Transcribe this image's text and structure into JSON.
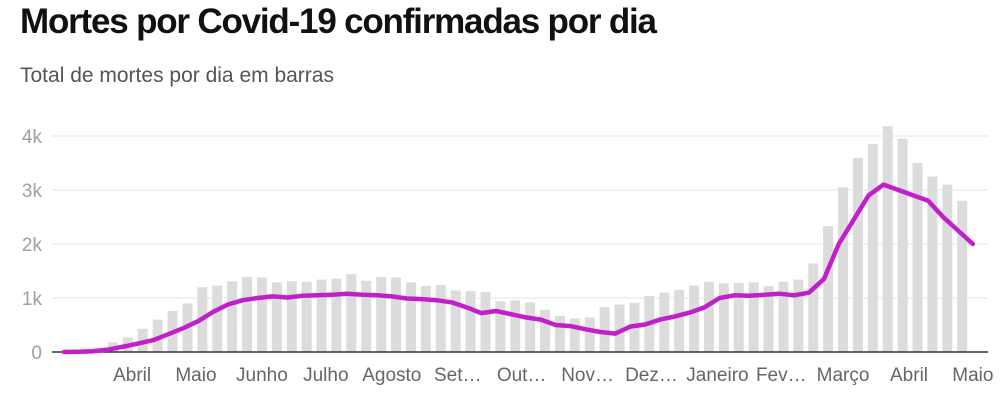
{
  "chart_data": {
    "type": "bar",
    "title": "Mortes por Covid-19 confirmadas por dia",
    "subtitle": "Total de mortes por dia em barras",
    "y_ticks": [
      0,
      1000,
      2000,
      3000,
      4000
    ],
    "y_tick_labels": [
      "0",
      "1k",
      "2k",
      "3k",
      "4k"
    ],
    "ylim": [
      0,
      4200
    ],
    "grid": true,
    "x_tick_labels": [
      "Abril",
      "Maio",
      "Junho",
      "Julho",
      "Agosto",
      "Set…",
      "Out…",
      "Nov…",
      "Dez…",
      "Janeiro",
      "Fev…",
      "Março",
      "Abril",
      "Maio"
    ],
    "series": [
      {
        "type": "bar",
        "color": "#dcdcdc",
        "x": [
          "2020-03-17",
          "2020-03-24",
          "2020-03-31",
          "2020-04-07",
          "2020-04-14",
          "2020-04-21",
          "2020-04-28",
          "2020-05-05",
          "2020-05-12",
          "2020-05-19",
          "2020-05-26",
          "2020-06-02",
          "2020-06-09",
          "2020-06-16",
          "2020-06-23",
          "2020-06-30",
          "2020-07-07",
          "2020-07-14",
          "2020-07-21",
          "2020-07-28",
          "2020-08-04",
          "2020-08-11",
          "2020-08-18",
          "2020-08-25",
          "2020-09-01",
          "2020-09-08",
          "2020-09-15",
          "2020-09-22",
          "2020-09-29",
          "2020-10-06",
          "2020-10-13",
          "2020-10-20",
          "2020-10-27",
          "2020-11-03",
          "2020-11-10",
          "2020-11-17",
          "2020-11-24",
          "2020-12-01",
          "2020-12-08",
          "2020-12-15",
          "2020-12-22",
          "2020-12-29",
          "2021-01-05",
          "2021-01-12",
          "2021-01-19",
          "2021-01-26",
          "2021-02-02",
          "2021-02-09",
          "2021-02-16",
          "2021-02-23",
          "2021-03-02",
          "2021-03-09",
          "2021-03-16",
          "2021-03-23",
          "2021-03-30",
          "2021-04-06",
          "2021-04-13",
          "2021-04-20",
          "2021-04-27",
          "2021-05-04",
          "2021-05-11"
        ],
        "values": [
          2,
          25,
          80,
          180,
          270,
          430,
          600,
          760,
          900,
          1200,
          1230,
          1310,
          1390,
          1380,
          1290,
          1310,
          1300,
          1340,
          1360,
          1440,
          1320,
          1390,
          1380,
          1290,
          1220,
          1240,
          1140,
          1130,
          1110,
          940,
          960,
          920,
          780,
          670,
          620,
          640,
          830,
          880,
          910,
          1040,
          1100,
          1150,
          1230,
          1300,
          1270,
          1280,
          1290,
          1220,
          1300,
          1340,
          1640,
          2330,
          3050,
          3590,
          3850,
          4180,
          3950,
          3500,
          3250,
          3100,
          2800
        ]
      },
      {
        "type": "line",
        "color": "#c11fc9",
        "x": [
          "2020-03-15",
          "2020-03-22",
          "2020-03-29",
          "2020-04-05",
          "2020-04-12",
          "2020-04-19",
          "2020-04-26",
          "2020-05-03",
          "2020-05-10",
          "2020-05-17",
          "2020-05-24",
          "2020-05-31",
          "2020-06-07",
          "2020-06-14",
          "2020-06-21",
          "2020-06-28",
          "2020-07-05",
          "2020-07-12",
          "2020-07-19",
          "2020-07-26",
          "2020-08-02",
          "2020-08-09",
          "2020-08-16",
          "2020-08-23",
          "2020-08-30",
          "2020-09-06",
          "2020-09-13",
          "2020-09-20",
          "2020-09-27",
          "2020-10-04",
          "2020-10-11",
          "2020-10-18",
          "2020-10-25",
          "2020-11-01",
          "2020-11-08",
          "2020-11-15",
          "2020-11-22",
          "2020-11-29",
          "2020-12-06",
          "2020-12-13",
          "2020-12-20",
          "2020-12-27",
          "2021-01-03",
          "2021-01-10",
          "2021-01-17",
          "2021-01-24",
          "2021-01-31",
          "2021-02-07",
          "2021-02-14",
          "2021-02-21",
          "2021-02-28",
          "2021-03-07",
          "2021-03-14",
          "2021-03-21",
          "2021-03-28",
          "2021-04-04",
          "2021-04-11",
          "2021-04-18",
          "2021-04-25",
          "2021-05-02",
          "2021-05-09",
          "2021-05-16"
        ],
        "values": [
          0,
          5,
          15,
          45,
          100,
          160,
          220,
          330,
          440,
          570,
          740,
          880,
          960,
          1000,
          1030,
          1010,
          1040,
          1050,
          1060,
          1080,
          1060,
          1050,
          1030,
          990,
          980,
          960,
          920,
          830,
          720,
          760,
          700,
          640,
          600,
          500,
          480,
          420,
          370,
          340,
          470,
          510,
          600,
          660,
          730,
          830,
          1000,
          1050,
          1040,
          1060,
          1080,
          1050,
          1100,
          1350,
          2000,
          2450,
          2900,
          3100,
          3000,
          2900,
          2800,
          2500,
          2250,
          2000
        ]
      }
    ]
  }
}
